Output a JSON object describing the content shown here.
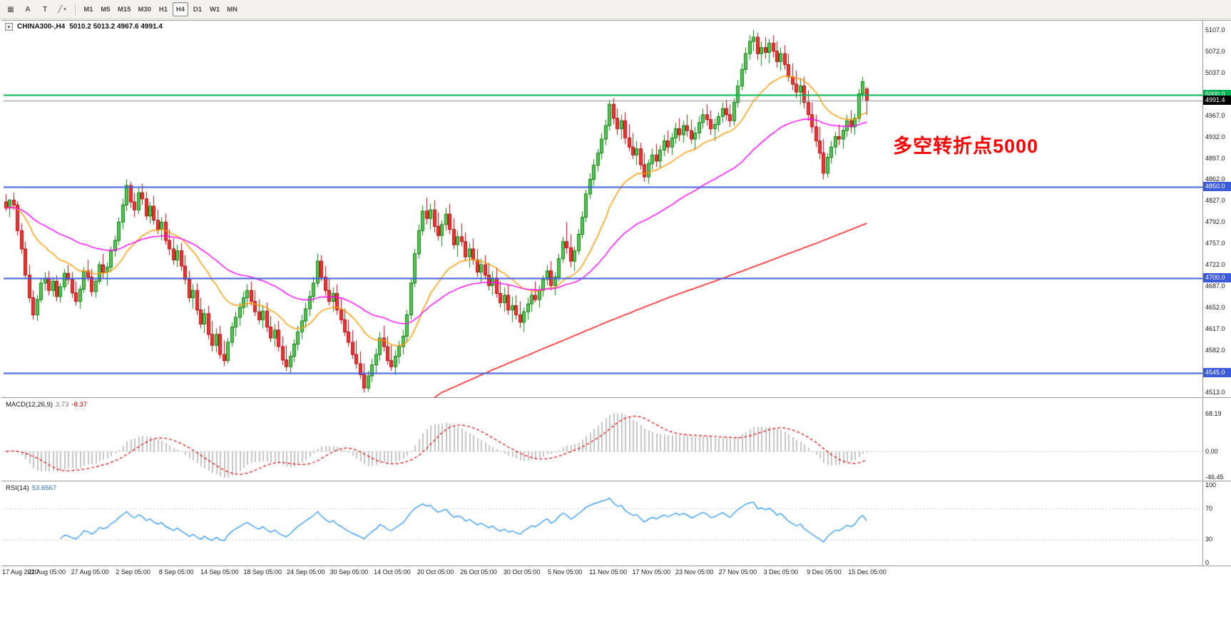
{
  "toolbar": {
    "tool_buttons": [
      {
        "name": "chart-grid",
        "glyph": "▦"
      },
      {
        "name": "text-label",
        "glyph": "A"
      },
      {
        "name": "text-tool",
        "glyph": "T"
      },
      {
        "name": "draw-shapes",
        "glyph": "╱"
      }
    ],
    "shapes_caret": "▾",
    "timeframes": [
      "M1",
      "M5",
      "M15",
      "M30",
      "H1",
      "H4",
      "D1",
      "W1",
      "MN"
    ],
    "active_timeframe": "H4"
  },
  "chart": {
    "title_symbol": "CHINA300-,H4",
    "title_ohlc": "5010.2 5013.2 4967.6 4991.4",
    "menu_arrow": "▾",
    "annotation": {
      "text": "多空转折点5000",
      "color": "#FF0000"
    },
    "hlines": [
      {
        "value": 5000.0,
        "label": "5000.0",
        "color": "#00B050",
        "width": 2,
        "tag": "green"
      },
      {
        "value": 4991.4,
        "label": "4991.4",
        "color": "#8a8a8a",
        "width": 1,
        "tag": "black"
      },
      {
        "value": 4850.0,
        "label": "4850.0",
        "color": "#3B5BDB",
        "width": 2,
        "tag": "blue"
      },
      {
        "value": 4700.0,
        "label": "4700.0",
        "color": "#3B5BDB",
        "width": 2,
        "tag": "blue"
      },
      {
        "value": 4545.0,
        "label": "4545.0",
        "color": "#3B5BDB",
        "width": 2,
        "tag": "blue"
      }
    ],
    "price_axis_ticks": [
      "5107.0",
      "5072.0",
      "5037.0",
      "5002.0",
      "4967.0",
      "4932.0",
      "4897.0",
      "4862.0",
      "4827.0",
      "4792.0",
      "4757.0",
      "4722.0",
      "4687.0",
      "4652.0",
      "4617.0",
      "4582.0",
      "4547.0",
      "4513.0"
    ],
    "colors": {
      "up_fill": "#57C457",
      "up_wick": "#118011",
      "down_fill": "#EE3333",
      "down_wick": "#B21111",
      "ma_fast": "#FF9900",
      "ma_mid": "#FF00FF",
      "ma_long": "#FF2020"
    }
  },
  "macd": {
    "name": "MACD(12,26,9)",
    "main_value": "3.73",
    "signal_value": "-8.37",
    "axis_labels": [
      "68.19",
      "0.00",
      "-46.45"
    ],
    "fast": 12,
    "slow": 26,
    "signal": 9,
    "hist_color": "#C4C4C4",
    "signal_color": "#E00000"
  },
  "rsi": {
    "name": "RSI(14)",
    "value": "53.6567",
    "axis_labels": [
      "100",
      "70",
      "30",
      "0"
    ],
    "period": 14,
    "levels": [
      70,
      30
    ],
    "line_color": "#1E90FF"
  },
  "time_axis": [
    "17 Aug 2020",
    "21 Aug 05:00",
    "27 Aug 05:00",
    "2 Sep 05:00",
    "8 Sep 05:00",
    "14 Sep 05:00",
    "18 Sep 05:00",
    "24 Sep 05:00",
    "30 Sep 05:00",
    "14 Oct 05:00",
    "20 Oct 05:00",
    "26 Oct 05:00",
    "30 Oct 05:00",
    "5 Nov 05:00",
    "11 Nov 05:00",
    "17 Nov 05:00",
    "23 Nov 05:00",
    "27 Nov 05:00",
    "3 Dec 05:00",
    "9 Dec 05:00",
    "15 Dec 05:00"
  ],
  "chart_data": {
    "type": "candlestick",
    "symbol": "CHINA300-",
    "timeframe": "H4",
    "title": "CHINA300-,H4 5010.2 5013.2 4967.6 4991.4",
    "y_range": [
      4505,
      5122
    ],
    "macd_range": [
      -52,
      96
    ],
    "ma_fast_period": 21,
    "ma_mid_period": 55,
    "long_ma_points": [
      [
        104,
        4480
      ],
      [
        112,
        4513
      ],
      [
        125,
        4550
      ],
      [
        140,
        4590
      ],
      [
        155,
        4630
      ],
      [
        170,
        4668
      ],
      [
        185,
        4702
      ],
      [
        200,
        4738
      ],
      [
        210,
        4762
      ],
      [
        221,
        4790
      ]
    ],
    "ohlc": [
      [
        4825,
        4838,
        4810,
        4815
      ],
      [
        4815,
        4830,
        4800,
        4828
      ],
      [
        4828,
        4840,
        4812,
        4820
      ],
      [
        4820,
        4826,
        4770,
        4778
      ],
      [
        4778,
        4790,
        4740,
        4748
      ],
      [
        4748,
        4760,
        4700,
        4705
      ],
      [
        4705,
        4722,
        4660,
        4668
      ],
      [
        4668,
        4680,
        4632,
        4640
      ],
      [
        4640,
        4672,
        4630,
        4665
      ],
      [
        4665,
        4700,
        4660,
        4692
      ],
      [
        4692,
        4710,
        4680,
        4700
      ],
      [
        4700,
        4712,
        4672,
        4680
      ],
      [
        4680,
        4702,
        4670,
        4695
      ],
      [
        4695,
        4705,
        4662,
        4670
      ],
      [
        4670,
        4692,
        4660,
        4686
      ],
      [
        4686,
        4715,
        4680,
        4708
      ],
      [
        4708,
        4722,
        4690,
        4698
      ],
      [
        4698,
        4710,
        4668,
        4676
      ],
      [
        4676,
        4695,
        4655,
        4662
      ],
      [
        4662,
        4688,
        4650,
        4682
      ],
      [
        4682,
        4718,
        4676,
        4712
      ],
      [
        4712,
        4730,
        4695,
        4702
      ],
      [
        4702,
        4715,
        4670,
        4678
      ],
      [
        4678,
        4700,
        4668,
        4695
      ],
      [
        4695,
        4728,
        4690,
        4722
      ],
      [
        4722,
        4740,
        4700,
        4710
      ],
      [
        4710,
        4726,
        4688,
        4718
      ],
      [
        4718,
        4752,
        4710,
        4745
      ],
      [
        4745,
        4770,
        4735,
        4762
      ],
      [
        4762,
        4800,
        4755,
        4792
      ],
      [
        4792,
        4830,
        4780,
        4820
      ],
      [
        4820,
        4862,
        4810,
        4852
      ],
      [
        4852,
        4858,
        4815,
        4825
      ],
      [
        4825,
        4840,
        4800,
        4812
      ],
      [
        4812,
        4848,
        4805,
        4840
      ],
      [
        4840,
        4855,
        4820,
        4830
      ],
      [
        4830,
        4842,
        4795,
        4802
      ],
      [
        4802,
        4825,
        4790,
        4818
      ],
      [
        4818,
        4835,
        4788,
        4795
      ],
      [
        4795,
        4812,
        4772,
        4780
      ],
      [
        4780,
        4800,
        4762,
        4792
      ],
      [
        4792,
        4806,
        4755,
        4762
      ],
      [
        4762,
        4780,
        4738,
        4748
      ],
      [
        4748,
        4765,
        4722,
        4730
      ],
      [
        4730,
        4755,
        4718,
        4745
      ],
      [
        4745,
        4758,
        4712,
        4720
      ],
      [
        4720,
        4738,
        4690,
        4698
      ],
      [
        4698,
        4712,
        4660,
        4668
      ],
      [
        4668,
        4690,
        4650,
        4680
      ],
      [
        4680,
        4692,
        4640,
        4648
      ],
      [
        4648,
        4668,
        4618,
        4625
      ],
      [
        4625,
        4650,
        4610,
        4642
      ],
      [
        4642,
        4655,
        4600,
        4608
      ],
      [
        4608,
        4630,
        4580,
        4590
      ],
      [
        4590,
        4618,
        4578,
        4608
      ],
      [
        4608,
        4622,
        4568,
        4575
      ],
      [
        4575,
        4598,
        4556,
        4565
      ],
      [
        4565,
        4602,
        4560,
        4595
      ],
      [
        4595,
        4628,
        4588,
        4620
      ],
      [
        4620,
        4645,
        4605,
        4636
      ],
      [
        4636,
        4660,
        4622,
        4652
      ],
      [
        4652,
        4678,
        4640,
        4668
      ],
      [
        4668,
        4690,
        4652,
        4680
      ],
      [
        4680,
        4695,
        4655,
        4662
      ],
      [
        4662,
        4680,
        4638,
        4645
      ],
      [
        4645,
        4665,
        4625,
        4632
      ],
      [
        4632,
        4655,
        4618,
        4646
      ],
      [
        4646,
        4660,
        4612,
        4620
      ],
      [
        4620,
        4638,
        4595,
        4602
      ],
      [
        4602,
        4625,
        4588,
        4615
      ],
      [
        4615,
        4630,
        4580,
        4588
      ],
      [
        4588,
        4605,
        4558,
        4566
      ],
      [
        4566,
        4590,
        4548,
        4555
      ],
      [
        4555,
        4580,
        4545,
        4572
      ],
      [
        4572,
        4600,
        4562,
        4592
      ],
      [
        4592,
        4622,
        4582,
        4612
      ],
      [
        4612,
        4640,
        4600,
        4630
      ],
      [
        4630,
        4660,
        4618,
        4650
      ],
      [
        4650,
        4680,
        4638,
        4670
      ],
      [
        4670,
        4702,
        4660,
        4692
      ],
      [
        4692,
        4740,
        4685,
        4728
      ],
      [
        4728,
        4738,
        4695,
        4702
      ],
      [
        4702,
        4720,
        4672,
        4680
      ],
      [
        4680,
        4700,
        4655,
        4662
      ],
      [
        4662,
        4685,
        4645,
        4675
      ],
      [
        4675,
        4690,
        4640,
        4648
      ],
      [
        4648,
        4668,
        4625,
        4632
      ],
      [
        4632,
        4650,
        4605,
        4612
      ],
      [
        4612,
        4632,
        4588,
        4595
      ],
      [
        4595,
        4615,
        4568,
        4575
      ],
      [
        4575,
        4598,
        4552,
        4560
      ],
      [
        4560,
        4580,
        4535,
        4542
      ],
      [
        4542,
        4560,
        4513,
        4520
      ],
      [
        4520,
        4548,
        4514,
        4540
      ],
      [
        4540,
        4568,
        4530,
        4558
      ],
      [
        4558,
        4585,
        4545,
        4575
      ],
      [
        4575,
        4612,
        4565,
        4602
      ],
      [
        4602,
        4622,
        4580,
        4588
      ],
      [
        4588,
        4605,
        4558,
        4565
      ],
      [
        4565,
        4590,
        4548,
        4555
      ],
      [
        4555,
        4582,
        4542,
        4572
      ],
      [
        4572,
        4598,
        4560,
        4588
      ],
      [
        4588,
        4615,
        4575,
        4605
      ],
      [
        4605,
        4648,
        4595,
        4640
      ],
      [
        4640,
        4700,
        4632,
        4692
      ],
      [
        4692,
        4748,
        4685,
        4740
      ],
      [
        4740,
        4788,
        4732,
        4778
      ],
      [
        4778,
        4820,
        4770,
        4810
      ],
      [
        4810,
        4832,
        4788,
        4798
      ],
      [
        4798,
        4822,
        4780,
        4812
      ],
      [
        4812,
        4828,
        4775,
        4785
      ],
      [
        4785,
        4808,
        4762,
        4770
      ],
      [
        4770,
        4795,
        4752,
        4788
      ],
      [
        4788,
        4815,
        4778,
        4805
      ],
      [
        4805,
        4822,
        4772,
        4780
      ],
      [
        4780,
        4798,
        4748,
        4755
      ],
      [
        4755,
        4778,
        4735,
        4768
      ],
      [
        4768,
        4790,
        4752,
        4760
      ],
      [
        4760,
        4775,
        4728,
        4735
      ],
      [
        4735,
        4758,
        4718,
        4748
      ],
      [
        4748,
        4765,
        4722,
        4730
      ],
      [
        4730,
        4748,
        4702,
        4710
      ],
      [
        4710,
        4732,
        4692,
        4722
      ],
      [
        4722,
        4738,
        4698,
        4705
      ],
      [
        4705,
        4725,
        4680,
        4688
      ],
      [
        4688,
        4712,
        4672,
        4700
      ],
      [
        4700,
        4718,
        4668,
        4675
      ],
      [
        4675,
        4695,
        4652,
        4660
      ],
      [
        4660,
        4685,
        4645,
        4672
      ],
      [
        4672,
        4690,
        4640,
        4648
      ],
      [
        4648,
        4670,
        4628,
        4655
      ],
      [
        4655,
        4672,
        4632,
        4640
      ],
      [
        4640,
        4662,
        4618,
        4628
      ],
      [
        4628,
        4652,
        4612,
        4645
      ],
      [
        4645,
        4668,
        4632,
        4658
      ],
      [
        4658,
        4680,
        4645,
        4672
      ],
      [
        4672,
        4695,
        4660,
        4665
      ],
      [
        4665,
        4688,
        4652,
        4680
      ],
      [
        4680,
        4705,
        4670,
        4698
      ],
      [
        4698,
        4722,
        4688,
        4712
      ],
      [
        4712,
        4728,
        4680,
        4688
      ],
      [
        4688,
        4710,
        4672,
        4702
      ],
      [
        4702,
        4740,
        4695,
        4732
      ],
      [
        4732,
        4768,
        4725,
        4760
      ],
      [
        4760,
        4792,
        4740,
        4750
      ],
      [
        4750,
        4772,
        4718,
        4728
      ],
      [
        4728,
        4752,
        4712,
        4745
      ],
      [
        4745,
        4780,
        4738,
        4772
      ],
      [
        4772,
        4810,
        4765,
        4800
      ],
      [
        4800,
        4845,
        4792,
        4838
      ],
      [
        4838,
        4872,
        4830,
        4862
      ],
      [
        4862,
        4895,
        4852,
        4885
      ],
      [
        4885,
        4912,
        4875,
        4905
      ],
      [
        4905,
        4938,
        4895,
        4928
      ],
      [
        4928,
        4960,
        4918,
        4950
      ],
      [
        4950,
        4992,
        4942,
        4985
      ],
      [
        4985,
        4995,
        4952,
        4962
      ],
      [
        4962,
        4978,
        4935,
        4945
      ],
      [
        4945,
        4968,
        4928,
        4958
      ],
      [
        4958,
        4972,
        4920,
        4930
      ],
      [
        4930,
        4952,
        4908,
        4915
      ],
      [
        4915,
        4938,
        4895,
        4902
      ],
      [
        4902,
        4925,
        4885,
        4912
      ],
      [
        4912,
        4922,
        4878,
        4886
      ],
      [
        4886,
        4905,
        4858,
        4866
      ],
      [
        4866,
        4895,
        4855,
        4888
      ],
      [
        4888,
        4912,
        4878,
        4902
      ],
      [
        4902,
        4920,
        4882,
        4892
      ],
      [
        4892,
        4918,
        4880,
        4910
      ],
      [
        4910,
        4935,
        4900,
        4925
      ],
      [
        4925,
        4942,
        4905,
        4915
      ],
      [
        4915,
        4938,
        4902,
        4930
      ],
      [
        4930,
        4955,
        4920,
        4945
      ],
      [
        4945,
        4962,
        4925,
        4935
      ],
      [
        4935,
        4958,
        4922,
        4950
      ],
      [
        4950,
        4968,
        4932,
        4942
      ],
      [
        4942,
        4960,
        4920,
        4928
      ],
      [
        4928,
        4948,
        4910,
        4938
      ],
      [
        4938,
        4965,
        4928,
        4955
      ],
      [
        4955,
        4978,
        4945,
        4968
      ],
      [
        4968,
        4985,
        4950,
        4960
      ],
      [
        4960,
        4975,
        4935,
        4945
      ],
      [
        4945,
        4962,
        4925,
        4952
      ],
      [
        4952,
        4972,
        4940,
        4965
      ],
      [
        4965,
        4988,
        4955,
        4978
      ],
      [
        4978,
        4992,
        4958,
        4968
      ],
      [
        4968,
        4985,
        4948,
        4958
      ],
      [
        4958,
        4995,
        4950,
        4988
      ],
      [
        4988,
        5025,
        4980,
        5015
      ],
      [
        5015,
        5052,
        5008,
        5042
      ],
      [
        5042,
        5078,
        5035,
        5068
      ],
      [
        5068,
        5098,
        5058,
        5088
      ],
      [
        5088,
        5107,
        5072,
        5095
      ],
      [
        5095,
        5102,
        5058,
        5068
      ],
      [
        5068,
        5088,
        5048,
        5078
      ],
      [
        5078,
        5095,
        5060,
        5070
      ],
      [
        5070,
        5092,
        5052,
        5085
      ],
      [
        5085,
        5098,
        5062,
        5072
      ],
      [
        5072,
        5088,
        5045,
        5055
      ],
      [
        5055,
        5078,
        5040,
        5068
      ],
      [
        5068,
        5082,
        5042,
        5050
      ],
      [
        5050,
        5068,
        5022,
        5030
      ],
      [
        5030,
        5052,
        5008,
        5018
      ],
      [
        5018,
        5040,
        4995,
        5005
      ],
      [
        5005,
        5028,
        4985,
        5015
      ],
      [
        5015,
        5030,
        4978,
        4988
      ],
      [
        4988,
        5008,
        4958,
        4968
      ],
      [
        4968,
        4988,
        4938,
        4948
      ],
      [
        4948,
        4968,
        4915,
        4925
      ],
      [
        4925,
        4948,
        4895,
        4905
      ],
      [
        4905,
        4928,
        4862,
        4872
      ],
      [
        4872,
        4905,
        4865,
        4898
      ],
      [
        4898,
        4925,
        4888,
        4915
      ],
      [
        4915,
        4940,
        4902,
        4932
      ],
      [
        4932,
        4952,
        4918,
        4928
      ],
      [
        4928,
        4950,
        4912,
        4942
      ],
      [
        4942,
        4968,
        4932,
        4958
      ],
      [
        4958,
        4975,
        4938,
        4948
      ],
      [
        4948,
        4970,
        4935,
        4962
      ],
      [
        4962,
        5010,
        4955,
        5002
      ],
      [
        5002,
        5030,
        4992,
        5022
      ],
      [
        5010.2,
        5013.2,
        4967.6,
        4991.4
      ]
    ]
  }
}
